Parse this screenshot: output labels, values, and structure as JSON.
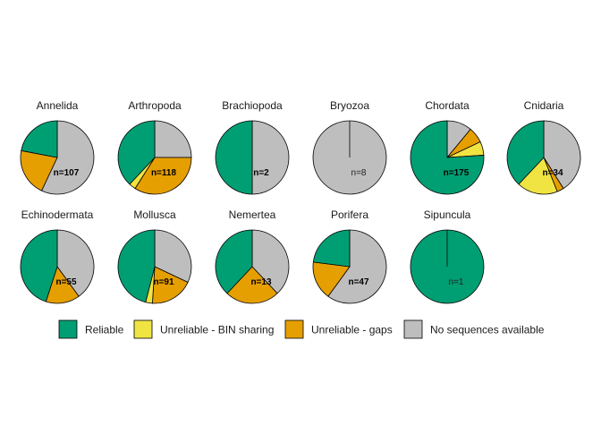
{
  "chart_data": {
    "type": "pie",
    "legend_position": "bottom",
    "categories": [
      "Reliable",
      "Unreliable - BIN sharing",
      "Unreliable - gaps",
      "No sequences available"
    ],
    "colors": {
      "Reliable": "#009E73",
      "Unreliable - BIN sharing": "#F0E442",
      "Unreliable - gaps": "#E69F00",
      "No sequences available": "#BEBEBE"
    },
    "panels": [
      {
        "name": "Annelida",
        "n": "n=107",
        "values": [
          0.22,
          0.0,
          0.21,
          0.57
        ]
      },
      {
        "name": "Arthropoda",
        "n": "n=118",
        "values": [
          0.38,
          0.03,
          0.34,
          0.25
        ]
      },
      {
        "name": "Brachiopoda",
        "n": "n=2",
        "values": [
          0.5,
          0.0,
          0.0,
          0.5
        ]
      },
      {
        "name": "Bryozoa",
        "n": "n=8",
        "values": [
          0.0,
          0.0,
          0.0,
          1.0
        ]
      },
      {
        "name": "Chordata",
        "n": "n=175",
        "values": [
          0.76,
          0.06,
          0.07,
          0.11
        ]
      },
      {
        "name": "Cnidaria",
        "n": "n=34",
        "values": [
          0.38,
          0.18,
          0.03,
          0.41
        ]
      },
      {
        "name": "Echinodermata",
        "n": "n=55",
        "values": [
          0.45,
          0.0,
          0.15,
          0.4
        ]
      },
      {
        "name": "Mollusca",
        "n": "n=91",
        "values": [
          0.46,
          0.03,
          0.19,
          0.32
        ]
      },
      {
        "name": "Nemertea",
        "n": "n=13",
        "values": [
          0.38,
          0.0,
          0.24,
          0.38
        ]
      },
      {
        "name": "Porifera",
        "n": "n=47",
        "values": [
          0.23,
          0.0,
          0.17,
          0.6
        ]
      },
      {
        "name": "Sipuncula",
        "n": "n=1",
        "values": [
          1.0,
          0.0,
          0.0,
          0.0
        ]
      }
    ]
  }
}
